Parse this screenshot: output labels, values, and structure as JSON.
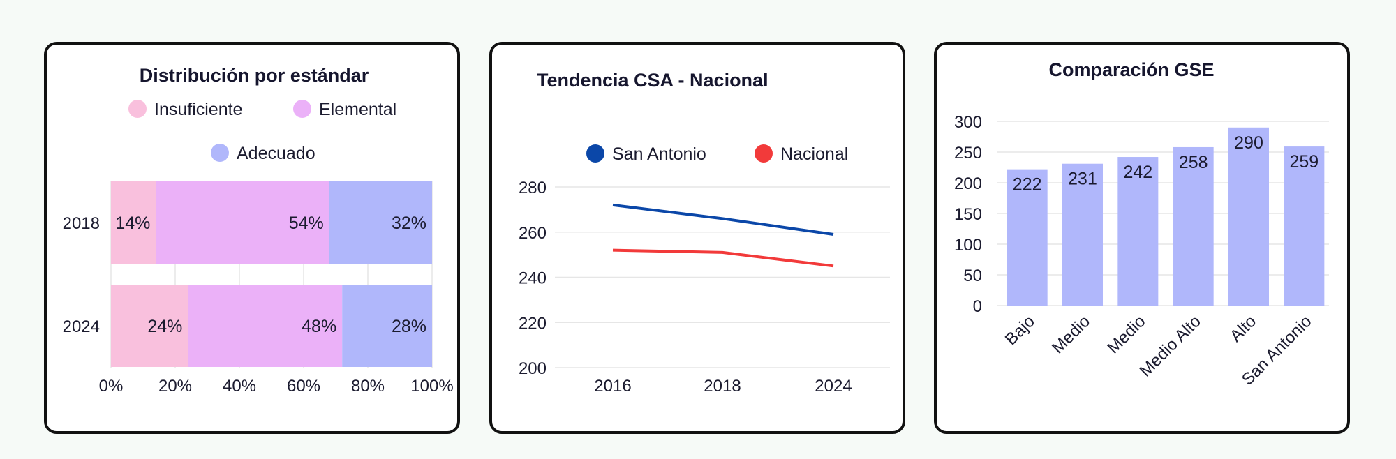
{
  "colors": {
    "insuficiente": "#f9c0dd",
    "elemental": "#ebb1f8",
    "adecuado": "#b0b7fb",
    "san_antonio": "#0b47a8",
    "nacional": "#f23a3a",
    "bar": "#b0b7fb"
  },
  "chart_data": [
    {
      "type": "bar",
      "orientation": "horizontal",
      "stacked": true,
      "title": "Distribución por estándar",
      "categories": [
        "2018",
        "2024"
      ],
      "series": [
        {
          "name": "Insuficiente",
          "values": [
            14,
            24
          ],
          "labels": [
            "14%",
            "24%"
          ]
        },
        {
          "name": "Elemental",
          "values": [
            54,
            48
          ],
          "labels": [
            "54%",
            "48%"
          ]
        },
        {
          "name": "Adecuado",
          "values": [
            32,
            28
          ],
          "labels": [
            "32%",
            "28%"
          ]
        }
      ],
      "xlim": [
        0,
        100
      ],
      "xticks": [
        "0%",
        "20%",
        "40%",
        "60%",
        "80%",
        "100%"
      ],
      "legend": "top",
      "grid": true
    },
    {
      "type": "line",
      "title": "Tendencia CSA - Nacional",
      "x": [
        "2016",
        "2018",
        "2024"
      ],
      "series": [
        {
          "name": "San Antonio",
          "values": [
            272,
            266,
            259
          ]
        },
        {
          "name": "Nacional",
          "values": [
            252,
            251,
            245
          ]
        }
      ],
      "ylim": [
        200,
        280
      ],
      "yticks": [
        "200",
        "220",
        "240",
        "260",
        "280"
      ],
      "legend": "top",
      "grid": true
    },
    {
      "type": "bar",
      "title": "Comparación GSE",
      "categories": [
        "Bajo",
        "Medio",
        "Medio",
        "Medio Alto",
        "Alto",
        "San Antonio"
      ],
      "values": [
        222,
        231,
        242,
        258,
        290,
        259
      ],
      "ylim": [
        0,
        300
      ],
      "yticks": [
        "0",
        "50",
        "100",
        "150",
        "200",
        "250",
        "300"
      ],
      "grid": true
    }
  ]
}
